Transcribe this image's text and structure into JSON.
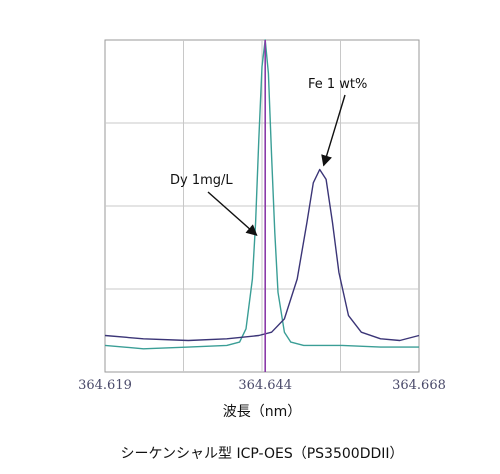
{
  "chart_data": {
    "type": "line",
    "xlabel": "波長（nm）",
    "caption": "シーケンシャル型 ICP-OES（PS3500DDII）",
    "xlim": [
      364.619,
      364.668
    ],
    "ylim": [
      0,
      100
    ],
    "x_ticks": [
      364.619,
      364.644,
      364.668
    ],
    "x_tick_labels": [
      "364.619",
      "364.644",
      "364.668"
    ],
    "grid": true,
    "series": [
      {
        "name": "Dy 1mg/L",
        "color": "#3a9e96",
        "x": [
          364.619,
          364.625,
          364.632,
          364.638,
          364.64,
          364.641,
          364.642,
          364.6425,
          364.643,
          364.6435,
          364.644,
          364.6445,
          364.645,
          364.6455,
          364.646,
          364.647,
          364.648,
          364.65,
          364.656,
          364.662,
          364.668
        ],
        "values": [
          8,
          7,
          7.5,
          8,
          9,
          13,
          28,
          45,
          70,
          92,
          100,
          90,
          65,
          42,
          24,
          12,
          9,
          8,
          8,
          7.5,
          7.5
        ]
      },
      {
        "name": "Fe 1 wt%",
        "color": "#3b3577",
        "x": [
          364.619,
          364.625,
          364.632,
          364.638,
          364.643,
          364.645,
          364.647,
          364.649,
          364.6505,
          364.6515,
          364.6525,
          364.6535,
          364.6545,
          364.6555,
          364.657,
          364.659,
          364.662,
          364.665,
          364.668
        ],
        "values": [
          11,
          10,
          9.5,
          10,
          11,
          12,
          16,
          28,
          45,
          57,
          61,
          58,
          45,
          30,
          17,
          12,
          10,
          9.5,
          11
        ]
      }
    ],
    "marker_line": {
      "x": 364.644,
      "color": "#8a3aa8"
    },
    "annotations": [
      {
        "text": "Fe 1 wt%",
        "series": "Fe 1 wt%",
        "target_x": 364.6525,
        "target_y": 61
      },
      {
        "text": "Dy 1mg/L",
        "series": "Dy 1mg/L",
        "target_x": 364.6433,
        "target_y": 40
      }
    ]
  }
}
